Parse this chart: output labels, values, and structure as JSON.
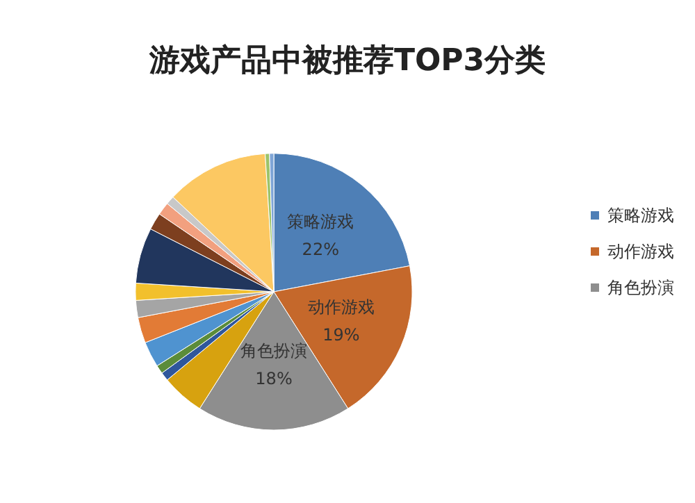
{
  "chart_data": {
    "type": "pie",
    "title": "游戏产品中被推荐TOP3分类",
    "categories": [
      "策略游戏",
      "动作游戏",
      "角色扮演",
      null,
      null,
      null,
      null,
      null,
      null,
      null,
      null,
      null,
      null,
      null,
      null,
      null,
      null
    ],
    "values": [
      22,
      19,
      18,
      5,
      1,
      1,
      3,
      3,
      2,
      2,
      6.5,
      2,
      1.5,
      1,
      12,
      0.5,
      0.5
    ],
    "colors": [
      "#4e7fb6",
      "#c5682b",
      "#8e8e8e",
      "#d7a20f",
      "#2f579c",
      "#5b8c3a",
      "#4f93d0",
      "#e27b36",
      "#a5a5a5",
      "#f2c02c",
      "#21365d",
      "#7d3f1f",
      "#f2a07f",
      "#c8c8c8",
      "#fcc862",
      "#9dc36a",
      "#7fa5d6"
    ],
    "value_labels": [
      "22%",
      "19%",
      "18%",
      null,
      null,
      null,
      null,
      null,
      null,
      null,
      null,
      null,
      null,
      null,
      null,
      null,
      null
    ],
    "legend": "right"
  }
}
